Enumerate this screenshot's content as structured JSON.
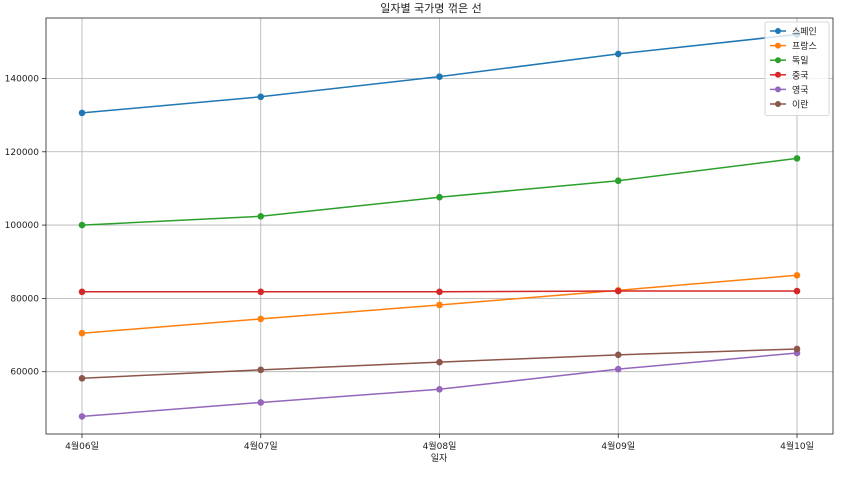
{
  "chart_data": {
    "type": "line",
    "title": "일자별 국가명 꺾은 선",
    "xlabel": "일자",
    "ylabel": "",
    "categories": [
      "4월06일",
      "4월07일",
      "4월08일",
      "4월09일",
      "4월10일"
    ],
    "ylim": [
      43000,
      156500
    ],
    "yticks": [
      60000,
      80000,
      100000,
      120000,
      140000
    ],
    "grid": true,
    "legend_position": "top-right",
    "series": [
      {
        "name": "스페인",
        "color": "#1f77b4",
        "values": [
          130600,
          135000,
          140500,
          146700,
          152000
        ]
      },
      {
        "name": "프랑스",
        "color": "#ff7f0e",
        "values": [
          70500,
          74400,
          78200,
          82200,
          86300
        ]
      },
      {
        "name": "독일",
        "color": "#2ca02c",
        "values": [
          100000,
          102400,
          107600,
          112100,
          118200
        ]
      },
      {
        "name": "중국",
        "color": "#d62728",
        "values": [
          81800,
          81800,
          81800,
          82000,
          82000
        ]
      },
      {
        "name": "영국",
        "color": "#9467bd",
        "values": [
          47800,
          51600,
          55200,
          60700,
          65100
        ]
      },
      {
        "name": "이란",
        "color": "#8c564b",
        "values": [
          58200,
          60500,
          62600,
          64600,
          66200
        ]
      }
    ]
  }
}
